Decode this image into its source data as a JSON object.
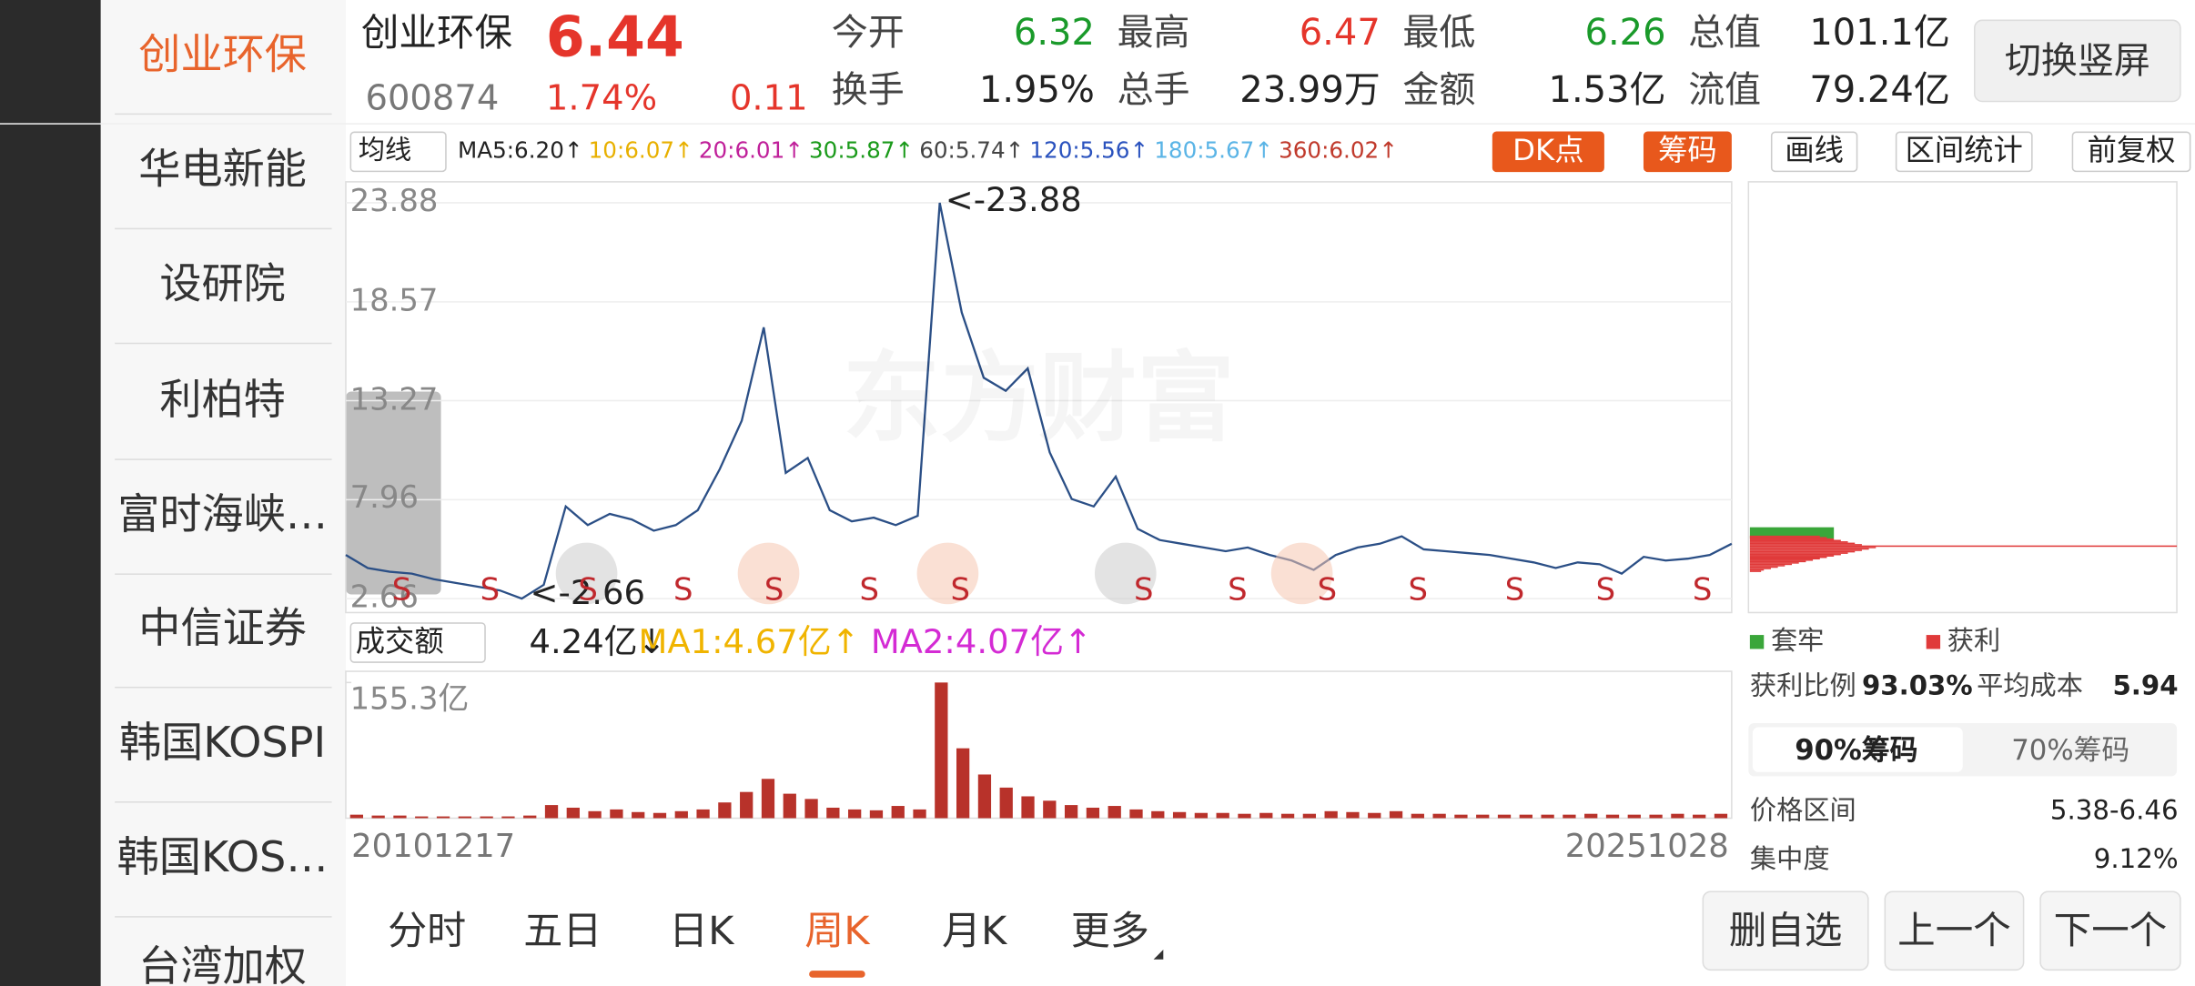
{
  "sidebar": {
    "items": [
      "创业环保",
      "华电新能",
      "设研院",
      "利柏特",
      "富时海峡…",
      "中信证券",
      "韩国KOSPI",
      "韩国KOS…",
      "台湾加权"
    ]
  },
  "header": {
    "name": "创业环保",
    "price": "6.44",
    "code": "600874",
    "change_pct": "1.74%",
    "change": "0.11",
    "quotes": [
      {
        "label": "今开",
        "value": "6.32",
        "color": "#1a9a2a"
      },
      {
        "label": "最高",
        "value": "6.47",
        "color": "#e5352b"
      },
      {
        "label": "最低",
        "value": "6.26",
        "color": "#1a9a2a"
      },
      {
        "label": "总值",
        "value": "101.1亿",
        "color": "#222"
      },
      {
        "label": "换手",
        "value": "1.95%",
        "color": "#222"
      },
      {
        "label": "总手",
        "value": "23.99万",
        "color": "#222"
      },
      {
        "label": "金额",
        "value": "1.53亿",
        "color": "#222"
      },
      {
        "label": "流值",
        "value": "79.24亿",
        "color": "#222"
      }
    ],
    "switch_button": "切换竖屏"
  },
  "ma_bar": {
    "selector": "均线",
    "items": [
      {
        "text": "MA5:6.20↑",
        "color": "#222"
      },
      {
        "text": "10:6.07↑",
        "color": "#e8b000"
      },
      {
        "text": "20:6.01↑",
        "color": "#c0209a"
      },
      {
        "text": "30:5.87↑",
        "color": "#1a9a1a"
      },
      {
        "text": "60:5.74↑",
        "color": "#444"
      },
      {
        "text": "120:5.56↑",
        "color": "#2a52be"
      },
      {
        "text": "180:5.67↑",
        "color": "#5ab4e6"
      },
      {
        "text": "360:6.02↑",
        "color": "#c0392b"
      }
    ],
    "buttons": [
      "DK点",
      "筹码",
      "画线",
      "区间统计",
      "前复权"
    ]
  },
  "price_chart": {
    "type": "line",
    "color": "#2b4f86",
    "ylim": [
      2.66,
      23.88
    ],
    "yticks": [
      23.88,
      18.57,
      13.27,
      7.96,
      2.66
    ],
    "max_label": "<-23.88",
    "min_label": "<-2.66",
    "watermark": "东方财富",
    "values": [
      5.0,
      4.3,
      4.1,
      4.0,
      3.7,
      3.5,
      3.3,
      3.1,
      2.66,
      3.4,
      7.6,
      6.6,
      7.2,
      6.9,
      6.3,
      6.6,
      7.4,
      9.6,
      12.2,
      17.2,
      9.4,
      10.2,
      7.4,
      6.8,
      7.0,
      6.6,
      7.1,
      23.88,
      18.0,
      14.5,
      13.8,
      15.0,
      10.5,
      8.0,
      7.6,
      9.2,
      6.4,
      5.8,
      5.6,
      5.4,
      5.2,
      5.4,
      5.0,
      4.7,
      4.2,
      5.0,
      5.4,
      5.6,
      6.0,
      5.3,
      5.2,
      5.1,
      5.0,
      4.8,
      4.6,
      4.3,
      4.6,
      4.5,
      4.0,
      4.9,
      4.7,
      4.8,
      5.0,
      5.6
    ],
    "signals": [
      "S",
      "S",
      "S",
      "S",
      "S",
      "S",
      "S",
      "S",
      "S",
      "S",
      "S",
      "S",
      "S",
      "S"
    ]
  },
  "volume_chart": {
    "type": "bar",
    "color": "#b8322a",
    "selector": "成交额",
    "current": "4.24亿↓",
    "ma1": "MA1:4.67亿↑",
    "ma2": "MA2:4.07亿↑",
    "ylim": [
      0,
      155.3
    ],
    "yticks": [
      {
        "value": 155.3,
        "label": "155.3亿"
      }
    ],
    "start_date": "20101217",
    "end_date": "20251028",
    "values": [
      4,
      3,
      3,
      2,
      2,
      2,
      2,
      2,
      3,
      15,
      12,
      8,
      10,
      7,
      6,
      8,
      10,
      18,
      30,
      45,
      28,
      22,
      12,
      10,
      9,
      14,
      10,
      155.3,
      80,
      50,
      35,
      25,
      20,
      15,
      12,
      14,
      10,
      8,
      7,
      6,
      6,
      5,
      6,
      5,
      5,
      8,
      7,
      6,
      8,
      5,
      5,
      4,
      4,
      4,
      4,
      4,
      4,
      5,
      4,
      4,
      4,
      5,
      4,
      5
    ]
  },
  "chip_panel": {
    "legend": [
      "套牢",
      "获利"
    ],
    "profit_ratio_label": "获利比例",
    "profit_ratio": "93.03%",
    "avg_cost_label": "平均成本",
    "avg_cost": "5.94",
    "tabs": [
      "90%筹码",
      "70%筹码"
    ],
    "range_label": "价格区间",
    "range": "5.38-6.46",
    "concentration_label": "集中度",
    "concentration": "9.12%"
  },
  "tabs": [
    "分时",
    "五日",
    "日K",
    "周K",
    "月K",
    "更多"
  ],
  "actions": [
    "删自选",
    "上一个",
    "下一个"
  ]
}
